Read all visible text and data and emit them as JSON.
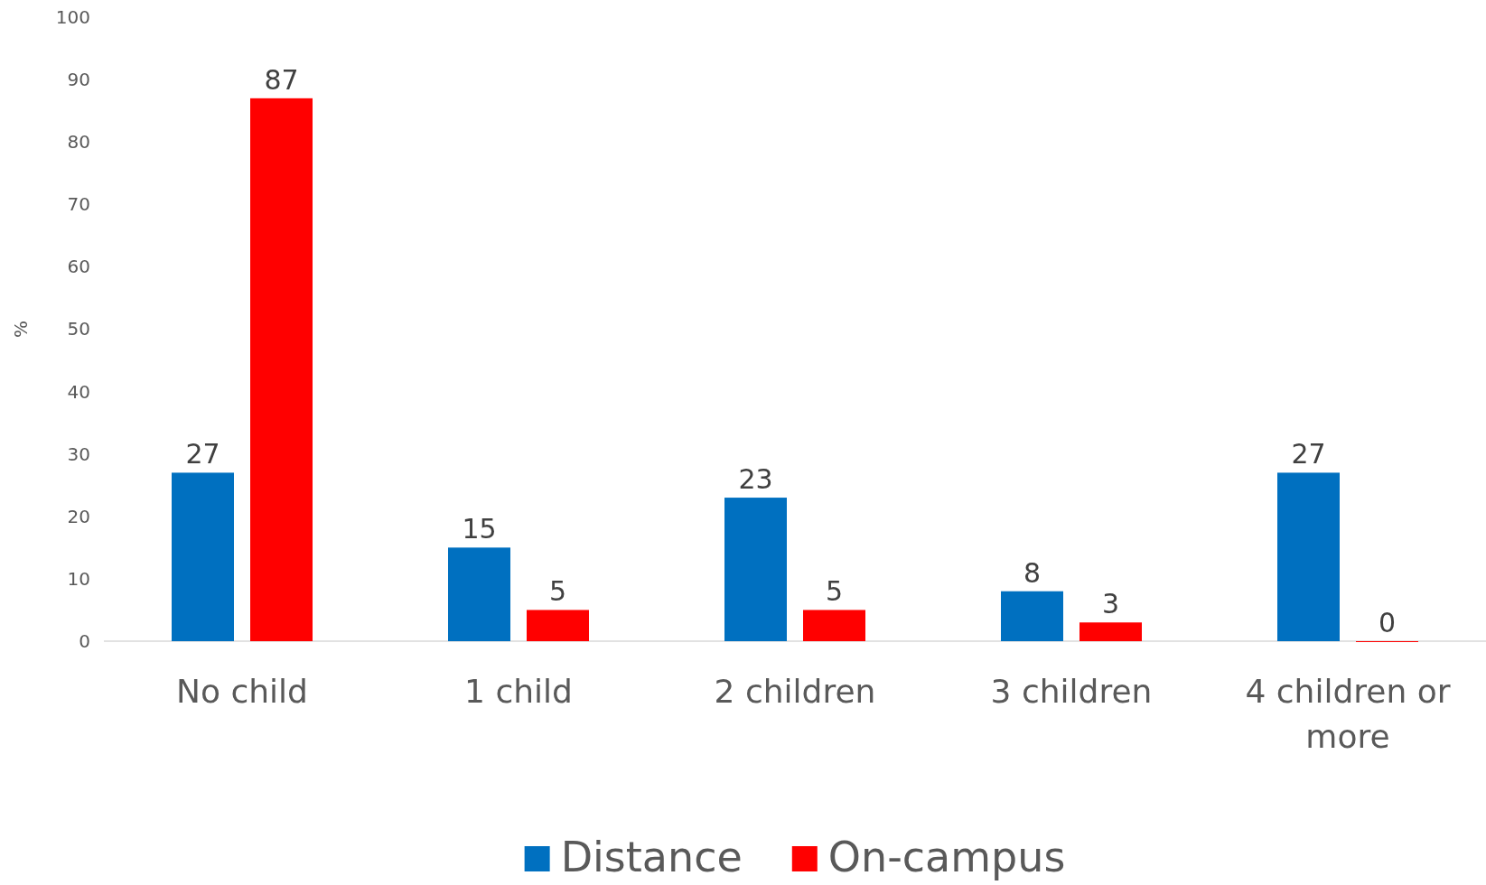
{
  "chart_data": {
    "type": "bar",
    "ylabel": "%",
    "categories": [
      "No child",
      "1 child",
      "2 children",
      "3 children",
      "4 children or more"
    ],
    "series": [
      {
        "name": "Distance",
        "color": "#0070c0",
        "values": [
          27,
          15,
          23,
          8,
          27
        ]
      },
      {
        "name": "On-campus",
        "color": "#ff0000",
        "values": [
          87,
          5,
          5,
          3,
          0
        ]
      }
    ],
    "ylim": [
      0,
      100
    ],
    "yticks": [
      0,
      10,
      20,
      30,
      40,
      50,
      60,
      70,
      80,
      90,
      100
    ],
    "grid": false,
    "legend": "bottom",
    "data_labels": true
  }
}
